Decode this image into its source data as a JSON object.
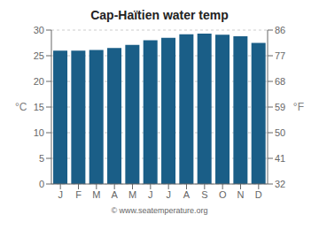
{
  "chart_data": {
    "type": "bar",
    "title": "Cap-Haïtien water temp",
    "categories": [
      "J",
      "F",
      "M",
      "A",
      "M",
      "J",
      "J",
      "A",
      "S",
      "O",
      "N",
      "D"
    ],
    "values": [
      26.0,
      26.0,
      26.1,
      26.5,
      27.1,
      28.0,
      28.5,
      29.2,
      29.3,
      29.1,
      28.8,
      27.5
    ],
    "color": "#1a5e87",
    "ylabel": "°C",
    "ylim": [
      0,
      30
    ],
    "yticks": [
      0,
      5,
      10,
      15,
      20,
      25,
      30
    ],
    "y2label": "°F",
    "y2lim": [
      32,
      86
    ],
    "y2ticks": [
      32,
      41,
      50,
      59,
      68,
      77,
      86
    ],
    "grid": true,
    "annotations": [
      "© www.seatemperature.org"
    ]
  }
}
